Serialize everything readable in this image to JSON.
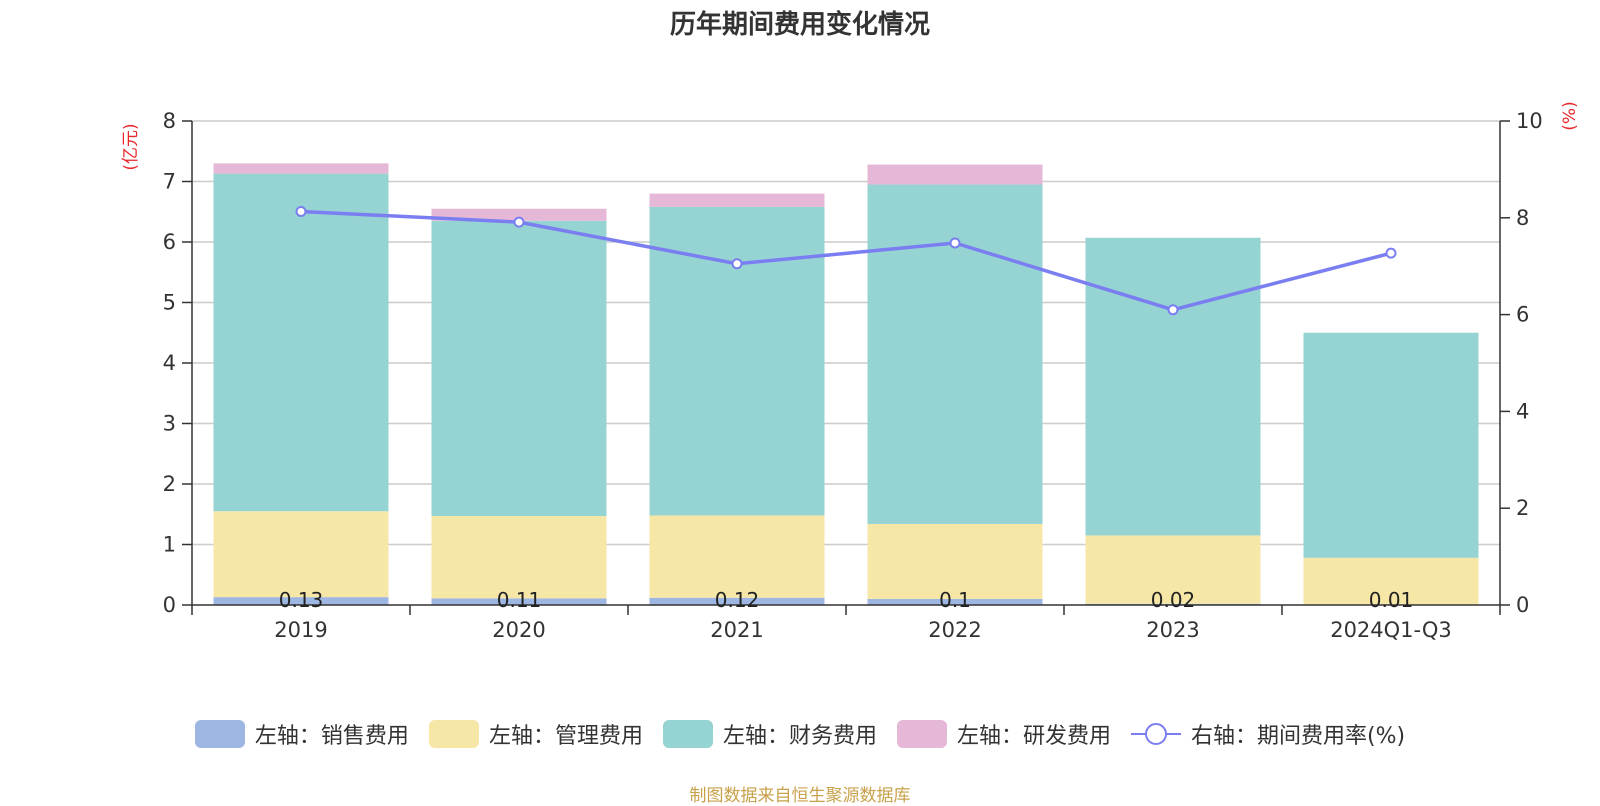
{
  "title": "历年期间费用变化情况",
  "source": "制图数据来自恒生聚源数据库",
  "colors": {
    "sales": "#9db6e2",
    "admin": "#f7e7a7",
    "finance": "#96d3d3",
    "rd": "#e6b8d8",
    "rate": "#7a7ef0",
    "unit": "#e8262b"
  },
  "legend": [
    {
      "key": "sales",
      "label": "左轴：销售费用"
    },
    {
      "key": "admin",
      "label": "左轴：管理费用"
    },
    {
      "key": "finance",
      "label": "左轴：财务费用"
    },
    {
      "key": "rd",
      "label": "左轴：研发费用"
    },
    {
      "key": "rate",
      "label": "右轴：期间费用率(%)"
    }
  ],
  "chart_data": {
    "type": "bar",
    "stacked": true,
    "title": "历年期间费用变化情况",
    "categories": [
      "2019",
      "2020",
      "2021",
      "2022",
      "2023",
      "2024Q1-Q3"
    ],
    "y_left": {
      "unit": "(亿元)",
      "ylim": [
        0,
        8
      ],
      "ticks": [
        0,
        1,
        2,
        3,
        4,
        5,
        6,
        7,
        8
      ]
    },
    "y_right": {
      "unit": "(%)",
      "ylim": [
        0,
        10
      ],
      "ticks": [
        0,
        2,
        4,
        6,
        8,
        10
      ]
    },
    "series": [
      {
        "key": "sales",
        "name": "销售费用",
        "axis": "left",
        "values": [
          0.13,
          0.11,
          0.12,
          0.1,
          0.02,
          0.01
        ],
        "labels": [
          "0.13",
          "0.11",
          "0.12",
          "0.1",
          "0.02",
          "0.01"
        ]
      },
      {
        "key": "admin",
        "name": "管理费用",
        "axis": "left",
        "values": [
          1.42,
          1.36,
          1.36,
          1.24,
          1.13,
          0.77
        ]
      },
      {
        "key": "finance",
        "name": "财务费用",
        "axis": "left",
        "values": [
          5.58,
          4.88,
          5.1,
          5.61,
          4.92,
          3.72
        ]
      },
      {
        "key": "rd",
        "name": "研发费用",
        "axis": "left",
        "values": [
          0.17,
          0.2,
          0.22,
          0.33,
          0.0,
          0.0
        ]
      },
      {
        "key": "rate",
        "name": "期间费用率(%)",
        "axis": "right",
        "type": "line",
        "values": [
          8.13,
          7.91,
          7.05,
          7.48,
          6.1,
          7.27
        ]
      }
    ],
    "grid": true,
    "legend_position": "bottom"
  }
}
